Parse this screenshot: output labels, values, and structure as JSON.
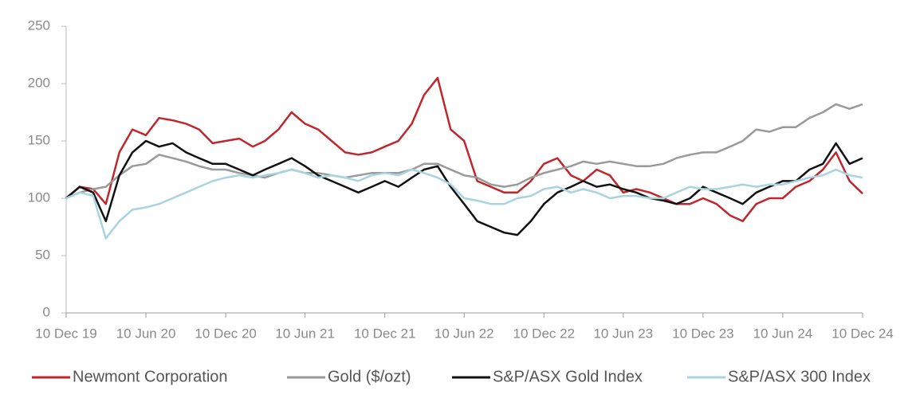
{
  "chart_data": {
    "type": "line",
    "x": [
      "2019-12-10",
      "2020-01-10",
      "2020-02-10",
      "2020-03-10",
      "2020-04-10",
      "2020-05-10",
      "2020-06-10",
      "2020-07-10",
      "2020-08-10",
      "2020-09-10",
      "2020-10-10",
      "2020-11-10",
      "2020-12-10",
      "2021-01-10",
      "2021-02-10",
      "2021-03-10",
      "2021-04-10",
      "2021-05-10",
      "2021-06-10",
      "2021-07-10",
      "2021-08-10",
      "2021-09-10",
      "2021-10-10",
      "2021-11-10",
      "2021-12-10",
      "2022-01-10",
      "2022-02-10",
      "2022-03-10",
      "2022-04-10",
      "2022-05-10",
      "2022-06-10",
      "2022-07-10",
      "2022-08-10",
      "2022-09-10",
      "2022-10-10",
      "2022-11-10",
      "2022-12-10",
      "2023-01-10",
      "2023-02-10",
      "2023-03-10",
      "2023-04-10",
      "2023-05-10",
      "2023-06-10",
      "2023-07-10",
      "2023-08-10",
      "2023-09-10",
      "2023-10-10",
      "2023-11-10",
      "2023-12-10",
      "2024-01-10",
      "2024-02-10",
      "2024-03-10",
      "2024-04-10",
      "2024-05-10",
      "2024-06-10",
      "2024-07-10",
      "2024-08-10",
      "2024-09-10",
      "2024-10-10",
      "2024-11-10",
      "2024-12-10"
    ],
    "series": [
      {
        "name": "Newmont Corporation",
        "color": "#c0272d",
        "values": [
          100,
          110,
          108,
          95,
          140,
          160,
          155,
          170,
          168,
          165,
          160,
          148,
          150,
          152,
          145,
          150,
          160,
          175,
          165,
          160,
          150,
          140,
          138,
          140,
          145,
          150,
          165,
          190,
          205,
          160,
          150,
          115,
          110,
          105,
          105,
          115,
          130,
          135,
          120,
          115,
          125,
          120,
          105,
          108,
          105,
          100,
          95,
          95,
          100,
          95,
          85,
          80,
          95,
          100,
          100,
          110,
          115,
          125,
          140,
          115,
          104
        ]
      },
      {
        "name": "Gold ($/ozt)",
        "color": "#9a9a9a",
        "values": [
          100,
          105,
          108,
          110,
          120,
          128,
          130,
          138,
          135,
          132,
          128,
          125,
          125,
          122,
          120,
          118,
          122,
          125,
          122,
          122,
          120,
          118,
          120,
          122,
          122,
          122,
          125,
          130,
          130,
          125,
          120,
          118,
          112,
          110,
          112,
          118,
          122,
          125,
          128,
          132,
          130,
          132,
          130,
          128,
          128,
          130,
          135,
          138,
          140,
          140,
          145,
          150,
          160,
          158,
          162,
          162,
          170,
          175,
          182,
          178,
          182
        ]
      },
      {
        "name": "S&P/ASX Gold Index",
        "color": "#111111",
        "values": [
          100,
          110,
          105,
          80,
          120,
          140,
          150,
          145,
          148,
          140,
          135,
          130,
          130,
          125,
          120,
          125,
          130,
          135,
          128,
          120,
          115,
          110,
          105,
          110,
          115,
          110,
          118,
          125,
          128,
          110,
          95,
          80,
          75,
          70,
          68,
          80,
          95,
          105,
          110,
          115,
          110,
          112,
          108,
          105,
          100,
          98,
          95,
          100,
          110,
          105,
          100,
          95,
          105,
          110,
          115,
          115,
          125,
          130,
          148,
          130,
          135
        ]
      },
      {
        "name": "S&P/ASX 300 Index",
        "color": "#a8d4e0",
        "values": [
          100,
          105,
          102,
          65,
          80,
          90,
          92,
          95,
          100,
          105,
          110,
          115,
          118,
          120,
          118,
          120,
          122,
          125,
          122,
          118,
          120,
          118,
          115,
          120,
          122,
          120,
          125,
          122,
          118,
          112,
          100,
          98,
          95,
          95,
          100,
          102,
          108,
          110,
          105,
          108,
          105,
          100,
          102,
          102,
          100,
          100,
          105,
          110,
          108,
          108,
          110,
          112,
          110,
          112,
          112,
          115,
          118,
          120,
          125,
          120,
          118
        ]
      }
    ],
    "xlim": [
      "2019-12-10",
      "2024-12-10"
    ],
    "xticks": [
      {
        "value": "2019-12-10",
        "label": "10 Dec 19"
      },
      {
        "value": "2020-06-10",
        "label": "10 Jun 20"
      },
      {
        "value": "2020-12-10",
        "label": "10 Dec 20"
      },
      {
        "value": "2021-06-10",
        "label": "10 Jun 21"
      },
      {
        "value": "2021-12-10",
        "label": "10 Dec 21"
      },
      {
        "value": "2022-06-10",
        "label": "10 Jun 22"
      },
      {
        "value": "2022-12-10",
        "label": "10 Dec 22"
      },
      {
        "value": "2023-06-10",
        "label": "10 Jun 23"
      },
      {
        "value": "2023-12-10",
        "label": "10 Dec 23"
      },
      {
        "value": "2024-06-10",
        "label": "10 Jun 24"
      },
      {
        "value": "2024-12-10",
        "label": "10 Dec 24"
      }
    ],
    "ylim": [
      0,
      250
    ],
    "yticks": [
      0,
      50,
      100,
      150,
      200,
      250
    ],
    "legend": "bottom"
  }
}
